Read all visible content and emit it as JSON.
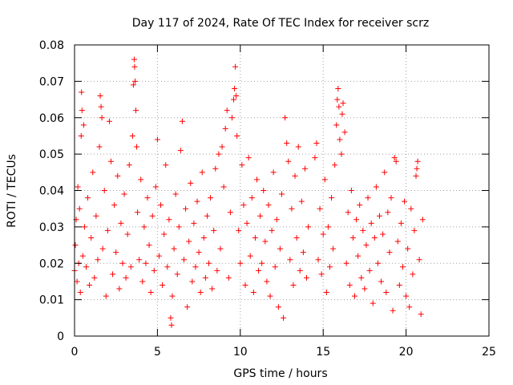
{
  "chart_data": {
    "type": "scatter",
    "title": "Day 117 of 2024, Rate Of TEC Index for receiver scrz",
    "xlabel": "GPS time / hours",
    "ylabel": "ROTI / TECUs",
    "xlim": [
      0,
      25
    ],
    "ylim": [
      0,
      0.08
    ],
    "xticks": [
      0,
      5,
      10,
      15,
      20,
      25
    ],
    "xtick_labels": [
      "0",
      "5",
      "10",
      "15",
      "20",
      "25"
    ],
    "yticks": [
      0,
      0.01,
      0.02,
      0.03,
      0.04,
      0.05,
      0.06,
      0.07,
      0.08
    ],
    "ytick_labels": [
      "0",
      "0.01",
      "0.02",
      "0.03",
      "0.04",
      "0.05",
      "0.06",
      "0.07",
      "0.08"
    ],
    "grid": true,
    "marker": "+",
    "series": [
      {
        "name": "ROTI",
        "color": "#ff0000",
        "points": [
          [
            0.0,
            0.018
          ],
          [
            0.05,
            0.025
          ],
          [
            0.1,
            0.032
          ],
          [
            0.15,
            0.015
          ],
          [
            0.2,
            0.041
          ],
          [
            0.25,
            0.02
          ],
          [
            0.3,
            0.035
          ],
          [
            0.35,
            0.012
          ],
          [
            0.4,
            0.055
          ],
          [
            0.42,
            0.067
          ],
          [
            0.45,
            0.062
          ],
          [
            0.5,
            0.022
          ],
          [
            0.55,
            0.058
          ],
          [
            0.6,
            0.03
          ],
          [
            0.7,
            0.019
          ],
          [
            0.8,
            0.038
          ],
          [
            0.9,
            0.014
          ],
          [
            1.0,
            0.027
          ],
          [
            1.1,
            0.045
          ],
          [
            1.2,
            0.016
          ],
          [
            1.3,
            0.033
          ],
          [
            1.4,
            0.021
          ],
          [
            1.5,
            0.052
          ],
          [
            1.55,
            0.066
          ],
          [
            1.6,
            0.063
          ],
          [
            1.65,
            0.06
          ],
          [
            1.7,
            0.024
          ],
          [
            1.8,
            0.04
          ],
          [
            1.9,
            0.011
          ],
          [
            2.0,
            0.029
          ],
          [
            2.1,
            0.059
          ],
          [
            2.2,
            0.048
          ],
          [
            2.3,
            0.017
          ],
          [
            2.4,
            0.036
          ],
          [
            2.5,
            0.023
          ],
          [
            2.6,
            0.044
          ],
          [
            2.7,
            0.013
          ],
          [
            2.8,
            0.031
          ],
          [
            2.9,
            0.02
          ],
          [
            3.0,
            0.039
          ],
          [
            3.1,
            0.016
          ],
          [
            3.2,
            0.028
          ],
          [
            3.3,
            0.047
          ],
          [
            3.4,
            0.019
          ],
          [
            3.5,
            0.055
          ],
          [
            3.55,
            0.069
          ],
          [
            3.6,
            0.076
          ],
          [
            3.62,
            0.074
          ],
          [
            3.65,
            0.07
          ],
          [
            3.7,
            0.062
          ],
          [
            3.75,
            0.052
          ],
          [
            3.8,
            0.034
          ],
          [
            3.9,
            0.021
          ],
          [
            4.0,
            0.043
          ],
          [
            4.1,
            0.015
          ],
          [
            4.2,
            0.03
          ],
          [
            4.3,
            0.02
          ],
          [
            4.4,
            0.038
          ],
          [
            4.5,
            0.025
          ],
          [
            4.6,
            0.012
          ],
          [
            4.7,
            0.033
          ],
          [
            4.8,
            0.018
          ],
          [
            4.9,
            0.041
          ],
          [
            5.0,
            0.054
          ],
          [
            5.1,
            0.022
          ],
          [
            5.2,
            0.036
          ],
          [
            5.3,
            0.014
          ],
          [
            5.4,
            0.028
          ],
          [
            5.5,
            0.047
          ],
          [
            5.6,
            0.019
          ],
          [
            5.7,
            0.032
          ],
          [
            5.8,
            0.005
          ],
          [
            5.85,
            0.003
          ],
          [
            5.9,
            0.011
          ],
          [
            6.0,
            0.024
          ],
          [
            6.1,
            0.039
          ],
          [
            6.2,
            0.017
          ],
          [
            6.3,
            0.03
          ],
          [
            6.4,
            0.051
          ],
          [
            6.5,
            0.059
          ],
          [
            6.6,
            0.021
          ],
          [
            6.7,
            0.035
          ],
          [
            6.8,
            0.008
          ],
          [
            6.9,
            0.026
          ],
          [
            7.0,
            0.042
          ],
          [
            7.1,
            0.015
          ],
          [
            7.2,
            0.031
          ],
          [
            7.3,
            0.019
          ],
          [
            7.4,
            0.037
          ],
          [
            7.5,
            0.023
          ],
          [
            7.6,
            0.012
          ],
          [
            7.7,
            0.045
          ],
          [
            7.8,
            0.027
          ],
          [
            7.9,
            0.016
          ],
          [
            8.0,
            0.033
          ],
          [
            8.1,
            0.02
          ],
          [
            8.2,
            0.038
          ],
          [
            8.3,
            0.013
          ],
          [
            8.4,
            0.029
          ],
          [
            8.5,
            0.046
          ],
          [
            8.6,
            0.018
          ],
          [
            8.7,
            0.05
          ],
          [
            8.8,
            0.024
          ],
          [
            8.9,
            0.052
          ],
          [
            9.0,
            0.041
          ],
          [
            9.1,
            0.057
          ],
          [
            9.2,
            0.062
          ],
          [
            9.3,
            0.016
          ],
          [
            9.4,
            0.034
          ],
          [
            9.5,
            0.06
          ],
          [
            9.6,
            0.065
          ],
          [
            9.65,
            0.068
          ],
          [
            9.7,
            0.074
          ],
          [
            9.75,
            0.066
          ],
          [
            9.8,
            0.055
          ],
          [
            9.9,
            0.029
          ],
          [
            10.0,
            0.02
          ],
          [
            10.1,
            0.047
          ],
          [
            10.2,
            0.036
          ],
          [
            10.3,
            0.014
          ],
          [
            10.4,
            0.031
          ],
          [
            10.5,
            0.049
          ],
          [
            10.6,
            0.022
          ],
          [
            10.7,
            0.038
          ],
          [
            10.8,
            0.012
          ],
          [
            10.9,
            0.027
          ],
          [
            11.0,
            0.043
          ],
          [
            11.1,
            0.018
          ],
          [
            11.2,
            0.033
          ],
          [
            11.3,
            0.02
          ],
          [
            11.4,
            0.04
          ],
          [
            11.5,
            0.026
          ],
          [
            11.6,
            0.015
          ],
          [
            11.7,
            0.036
          ],
          [
            11.8,
            0.011
          ],
          [
            11.9,
            0.029
          ],
          [
            12.0,
            0.045
          ],
          [
            12.1,
            0.019
          ],
          [
            12.2,
            0.032
          ],
          [
            12.3,
            0.008
          ],
          [
            12.4,
            0.024
          ],
          [
            12.5,
            0.039
          ],
          [
            12.6,
            0.005
          ],
          [
            12.7,
            0.06
          ],
          [
            12.8,
            0.053
          ],
          [
            12.9,
            0.048
          ],
          [
            13.0,
            0.021
          ],
          [
            13.1,
            0.035
          ],
          [
            13.2,
            0.014
          ],
          [
            13.3,
            0.044
          ],
          [
            13.4,
            0.027
          ],
          [
            13.5,
            0.052
          ],
          [
            13.6,
            0.018
          ],
          [
            13.7,
            0.037
          ],
          [
            13.8,
            0.023
          ],
          [
            13.9,
            0.046
          ],
          [
            14.0,
            0.016
          ],
          [
            14.1,
            0.03
          ],
          [
            14.5,
            0.049
          ],
          [
            14.6,
            0.053
          ],
          [
            14.7,
            0.021
          ],
          [
            14.8,
            0.035
          ],
          [
            14.9,
            0.017
          ],
          [
            15.0,
            0.028
          ],
          [
            15.1,
            0.043
          ],
          [
            15.2,
            0.012
          ],
          [
            15.3,
            0.03
          ],
          [
            15.4,
            0.019
          ],
          [
            15.5,
            0.038
          ],
          [
            15.6,
            0.024
          ],
          [
            15.7,
            0.047
          ],
          [
            15.8,
            0.058
          ],
          [
            15.85,
            0.065
          ],
          [
            15.9,
            0.068
          ],
          [
            15.95,
            0.063
          ],
          [
            16.0,
            0.054
          ],
          [
            16.1,
            0.05
          ],
          [
            16.15,
            0.061
          ],
          [
            16.2,
            0.064
          ],
          [
            16.3,
            0.056
          ],
          [
            16.4,
            0.02
          ],
          [
            16.5,
            0.034
          ],
          [
            16.6,
            0.014
          ],
          [
            16.7,
            0.04
          ],
          [
            16.8,
            0.027
          ],
          [
            16.9,
            0.011
          ],
          [
            17.0,
            0.032
          ],
          [
            17.1,
            0.022
          ],
          [
            17.2,
            0.036
          ],
          [
            17.3,
            0.016
          ],
          [
            17.4,
            0.029
          ],
          [
            17.5,
            0.013
          ],
          [
            17.6,
            0.025
          ],
          [
            17.7,
            0.038
          ],
          [
            17.8,
            0.018
          ],
          [
            17.9,
            0.031
          ],
          [
            18.0,
            0.009
          ],
          [
            18.1,
            0.027
          ],
          [
            18.2,
            0.041
          ],
          [
            18.3,
            0.02
          ],
          [
            18.4,
            0.033
          ],
          [
            18.5,
            0.015
          ],
          [
            18.6,
            0.028
          ],
          [
            18.7,
            0.045
          ],
          [
            18.8,
            0.012
          ],
          [
            18.9,
            0.034
          ],
          [
            19.0,
            0.023
          ],
          [
            19.1,
            0.038
          ],
          [
            19.2,
            0.007
          ],
          [
            19.3,
            0.049
          ],
          [
            19.4,
            0.048
          ],
          [
            19.5,
            0.026
          ],
          [
            19.6,
            0.014
          ],
          [
            19.7,
            0.031
          ],
          [
            19.8,
            0.019
          ],
          [
            19.9,
            0.037
          ],
          [
            20.0,
            0.011
          ],
          [
            20.1,
            0.024
          ],
          [
            20.2,
            0.008
          ],
          [
            20.3,
            0.035
          ],
          [
            20.4,
            0.017
          ],
          [
            20.5,
            0.029
          ],
          [
            20.6,
            0.044
          ],
          [
            20.65,
            0.046
          ],
          [
            20.7,
            0.048
          ],
          [
            20.8,
            0.021
          ],
          [
            20.9,
            0.006
          ],
          [
            21.0,
            0.032
          ]
        ]
      }
    ]
  }
}
